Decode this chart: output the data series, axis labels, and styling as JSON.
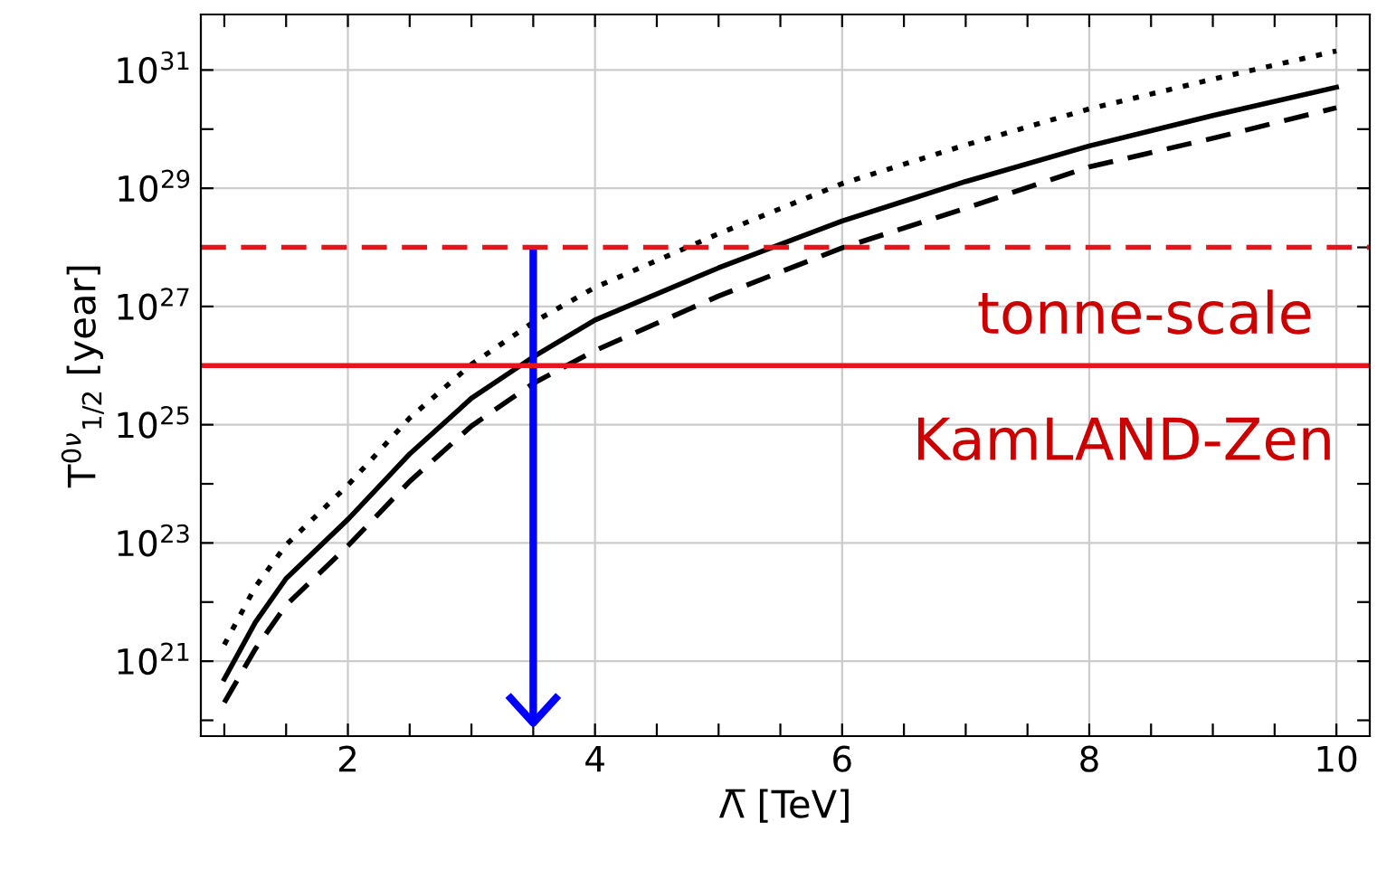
{
  "chart_data": {
    "type": "line",
    "xlabel": "Λ̅ [TeV]",
    "ylabel": "T$^{0ν}$$_{1/2}$ [year]",
    "log": "y",
    "grid": true,
    "legend": false,
    "xlim": [
      0.81,
      10.27
    ],
    "ylim": [
      5.4e+19,
      8.7e+31
    ],
    "xticks": [
      {
        "value": 1,
        "label": null
      },
      {
        "value": 1.5,
        "label": null
      },
      2,
      {
        "value": 2.5,
        "label": null
      },
      {
        "value": 3,
        "label": null
      },
      {
        "value": 3.5,
        "label": null
      },
      4,
      {
        "value": 4.5,
        "label": null
      },
      {
        "value": 5,
        "label": null
      },
      {
        "value": 5.5,
        "label": null
      },
      6,
      {
        "value": 6.5,
        "label": null
      },
      {
        "value": 7,
        "label": null
      },
      {
        "value": 7.5,
        "label": null
      },
      8,
      {
        "value": 8.5,
        "label": null
      },
      {
        "value": 9,
        "label": null
      },
      {
        "value": 9.5,
        "label": null
      },
      10
    ],
    "yticks": [
      {
        "value": 1e+20,
        "label": null
      },
      {
        "value": 1e+21,
        "label": "10$^{21}$"
      },
      {
        "value": 1e+22,
        "label": null
      },
      {
        "value": 1e+23,
        "label": "10$^{23}$"
      },
      {
        "value": 1e+24,
        "label": null
      },
      {
        "value": 1e+25,
        "label": "10$^{25}$"
      },
      {
        "value": 1e+26,
        "label": null
      },
      {
        "value": 1e+27,
        "label": "10$^{27}$"
      },
      {
        "value": 1e+28,
        "label": null
      },
      {
        "value": 1e+29,
        "label": "10$^{29}$"
      },
      {
        "value": 1e+30,
        "label": null
      },
      {
        "value": 1e+31,
        "label": "10$^{31}$"
      }
    ],
    "series": [
      {
        "color": "#000000",
        "line_style": "dotted",
        "x": [
          1,
          1.25,
          1.5,
          2,
          2.5,
          3,
          3.5,
          4,
          5,
          6,
          7,
          8,
          9,
          10
        ],
        "values": [
          1.9e+21,
          1.8e+22,
          9.3e+22,
          9.5e+23,
          1.3e+25,
          1.05e+26,
          5.4e+26,
          2.1e+27,
          1.7e+28,
          1.2e+29,
          5.4e+29,
          2.2e+30,
          7e+30,
          2.1e+31
        ]
      },
      {
        "color": "#000000",
        "line_style": "solid",
        "x": [
          1,
          1.25,
          1.5,
          2,
          2.5,
          3,
          3.5,
          4,
          5,
          6,
          7,
          8,
          9,
          10
        ],
        "values": [
          5e+20,
          4.5e+21,
          2.5e+22,
          2.5e+23,
          3.2e+24,
          2.8e+25,
          1.4e+26,
          5.9e+26,
          4.5e+27,
          2.8e+28,
          1.3e+29,
          5.2e+29,
          1.7e+30,
          5.1e+30
        ]
      },
      {
        "color": "#000000",
        "line_style": "dashed",
        "x": [
          1,
          1.25,
          1.5,
          2,
          2.5,
          3,
          3.5,
          4,
          5,
          6,
          7,
          8,
          9,
          10
        ],
        "values": [
          2e+20,
          1.6e+21,
          8.9e+21,
          8.9e+22,
          1.1e+24,
          9.5e+24,
          5e+25,
          1.8e+26,
          1.5e+27,
          9.8e+27,
          4.6e+28,
          2.3e+29,
          7e+29,
          2.3e+30
        ]
      },
      {
        "color": "#0000ff",
        "line_style": "solid",
        "x": [
          3.5,
          3.5
        ],
        "values": [
          1e+28,
          9e+19
        ]
      }
    ],
    "ref_lines": [
      {
        "axis": "y",
        "value": 1e+28,
        "color": "#e8141c",
        "line_style": "dashed"
      },
      {
        "axis": "y",
        "value": 1e+26,
        "color": "#e8141c",
        "line_style": "solid"
      }
    ],
    "annotations": [
      "tonne-scale",
      "KamLAND-Zen"
    ]
  }
}
